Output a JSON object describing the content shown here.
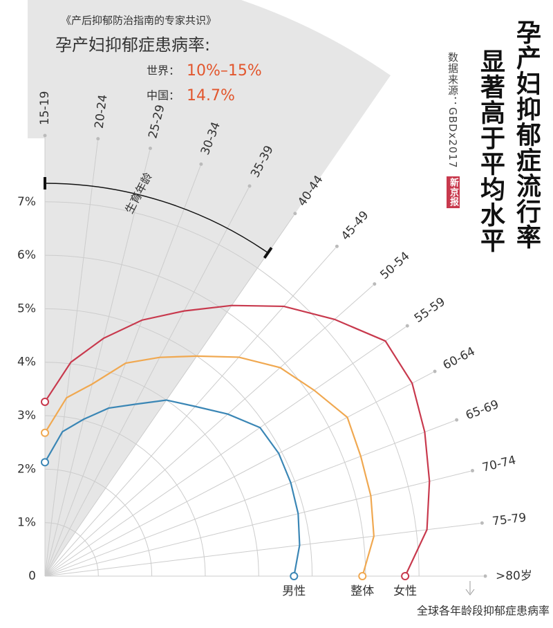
{
  "chart_data": {
    "type": "polar-line",
    "annotation": "《产后抑郁防治指南的专家共识》",
    "subtitle": "孕产妇抑郁症患病率:",
    "world_label": "世界：",
    "world_value": "10%–15%",
    "china_label": "中国：",
    "china_value": "14.7%",
    "title": [
      "孕产妇抑郁症流行率",
      "显著高于平均水平"
    ],
    "source": "数据来源：GBDx2017",
    "logo": "新京报",
    "range_label": "生育年龄",
    "x_label": "全球各年龄段抑郁症患病率",
    "categories": [
      "15-19",
      "20-24",
      "25-29",
      "30-34",
      "35-39",
      "40-44",
      "45-49",
      "50-54",
      "55-59",
      "60-64",
      "65-69",
      "70-74",
      "75-79",
      ">80岁"
    ],
    "series": [
      {
        "name": "男性",
        "color": "#3a86b5",
        "values": [
          2.13,
          2.72,
          3.02,
          3.36,
          3.63,
          4.0,
          4.24,
          4.57,
          4.89,
          4.94,
          4.92,
          4.88,
          4.8,
          4.66
        ]
      },
      {
        "name": "整体",
        "color": "#f0a850",
        "values": [
          2.68,
          3.36,
          3.7,
          4.26,
          4.62,
          5.0,
          5.47,
          5.88,
          6.12,
          6.39,
          6.32,
          6.28,
          6.2,
          5.94
        ]
      },
      {
        "name": "女性",
        "color": "#c8394d",
        "values": [
          3.26,
          4.03,
          4.58,
          5.12,
          5.6,
          6.15,
          6.74,
          7.24,
          7.74,
          7.76,
          7.6,
          7.41,
          7.2,
          6.74
        ]
      }
    ],
    "ylim": [
      0,
      8.2
    ],
    "yticks": [
      0,
      {
        "value": 1,
        "label": "1%"
      },
      {
        "value": 2,
        "label": "2%"
      },
      {
        "value": 3,
        "label": "3%"
      },
      {
        "value": 4,
        "label": "4%"
      },
      {
        "value": 5,
        "label": "5%"
      },
      {
        "value": 6,
        "label": "6%"
      },
      {
        "value": 7,
        "label": "7%"
      }
    ],
    "grid": true
  }
}
